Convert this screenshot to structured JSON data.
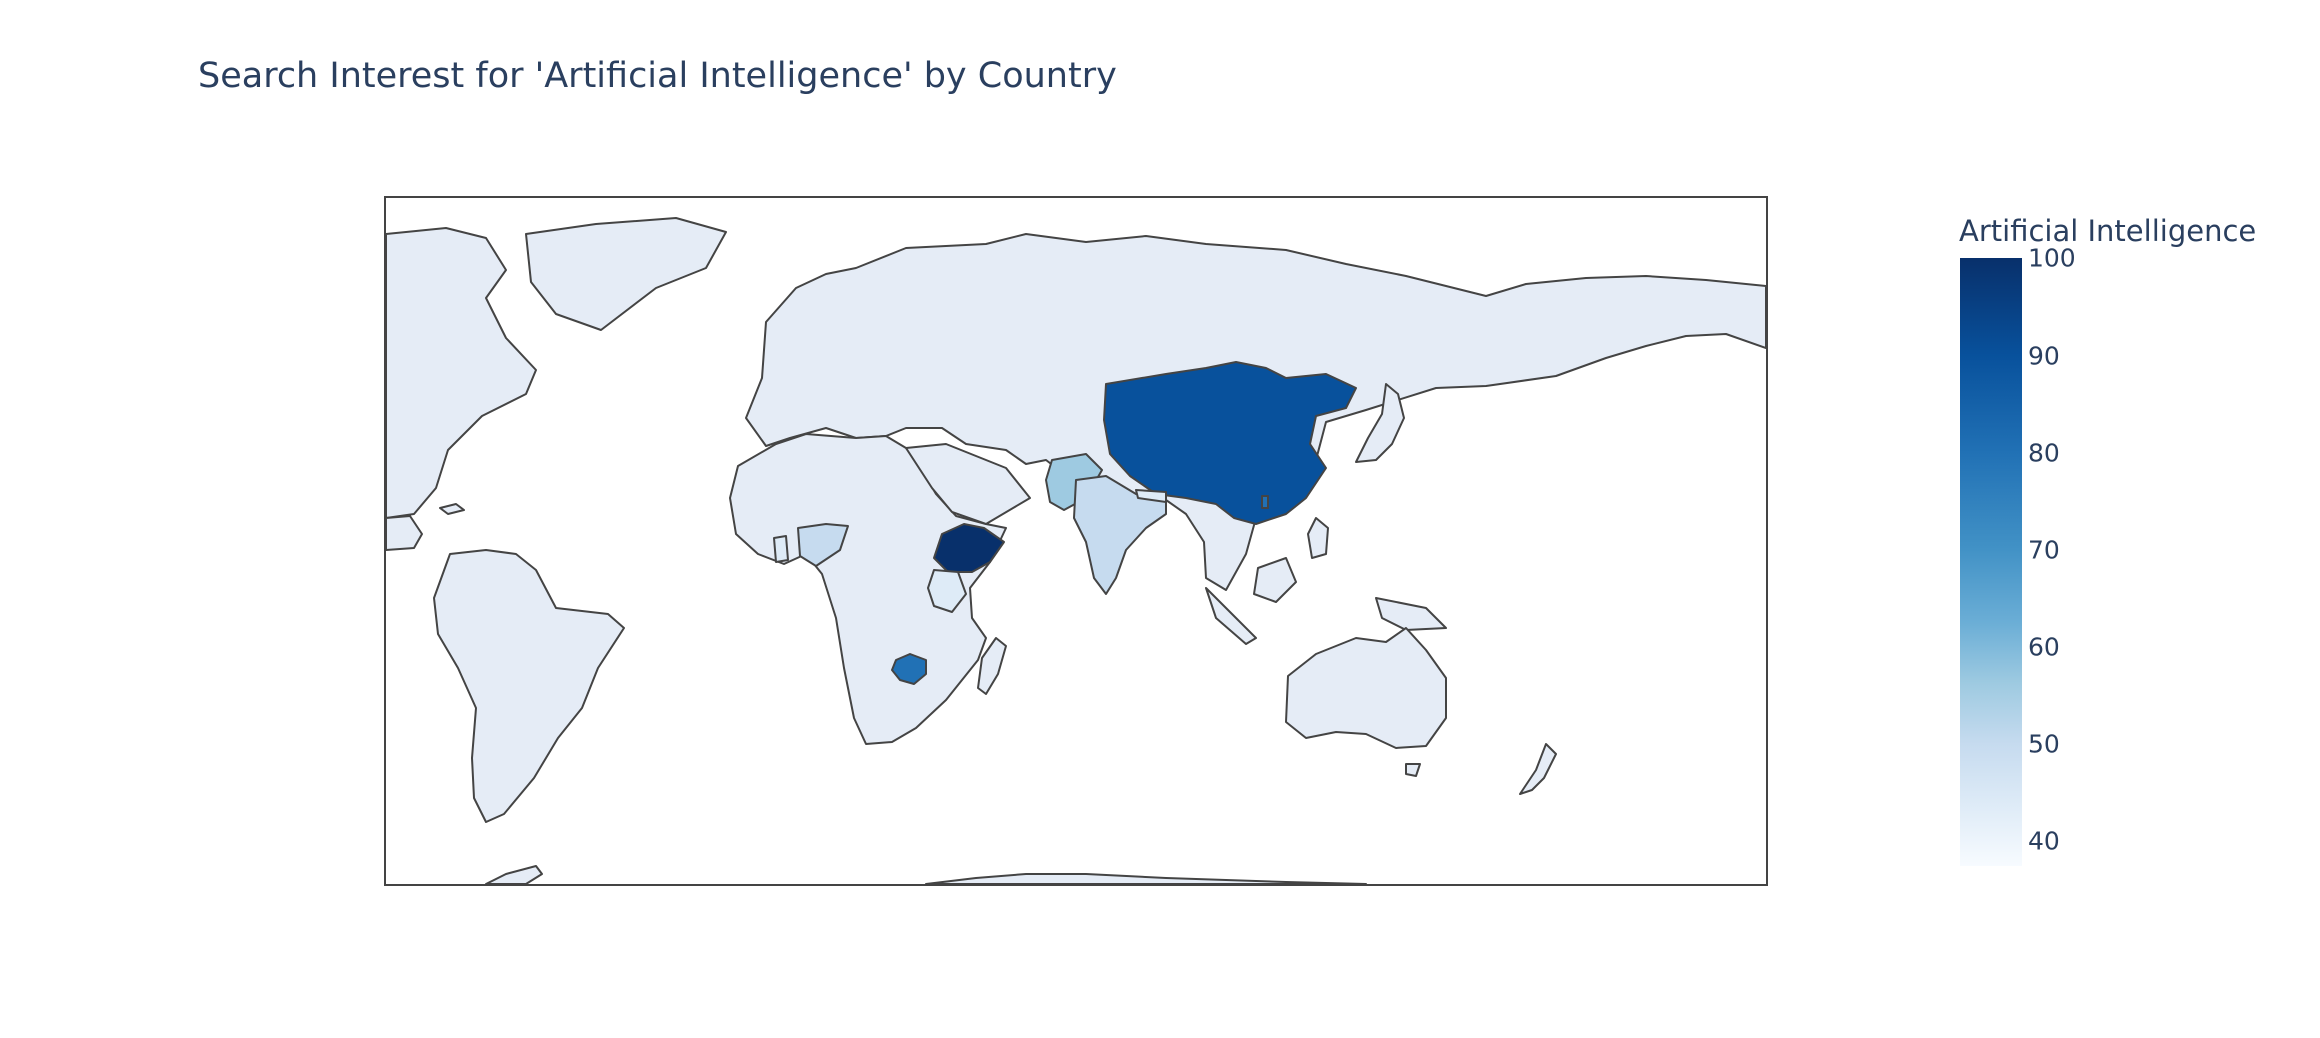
{
  "chart": {
    "title": "Search Interest for 'Artificial Intelligence' by Country",
    "colorbar_title": "Artificial Intelligence",
    "colorscale": [
      "#f7fbff",
      "#deebf7",
      "#c6dbef",
      "#9ecae1",
      "#6baed6",
      "#4292c6",
      "#2171b5",
      "#08519c",
      "#08306b"
    ],
    "colorbar_ticks": [
      "40",
      "50",
      "60",
      "70",
      "80",
      "90",
      "100"
    ]
  },
  "chart_data": {
    "type": "choropleth",
    "title": "Search Interest for 'Artificial Intelligence' by Country",
    "colorbar_title": "Artificial Intelligence",
    "color_range": [
      37,
      100
    ],
    "projection": "equirectangular",
    "default_color": "#e5ecf6",
    "regions": [
      {
        "region": "China",
        "value": 90
      },
      {
        "region": "Ethiopia",
        "value": 100
      },
      {
        "region": "Zimbabwe",
        "value": 83
      },
      {
        "region": "Pakistan",
        "value": 61
      },
      {
        "region": "India",
        "value": 52
      },
      {
        "region": "Nigeria",
        "value": 55
      },
      {
        "region": "Kenya",
        "value": 47
      },
      {
        "region": "Nepal",
        "value": 49
      }
    ]
  }
}
